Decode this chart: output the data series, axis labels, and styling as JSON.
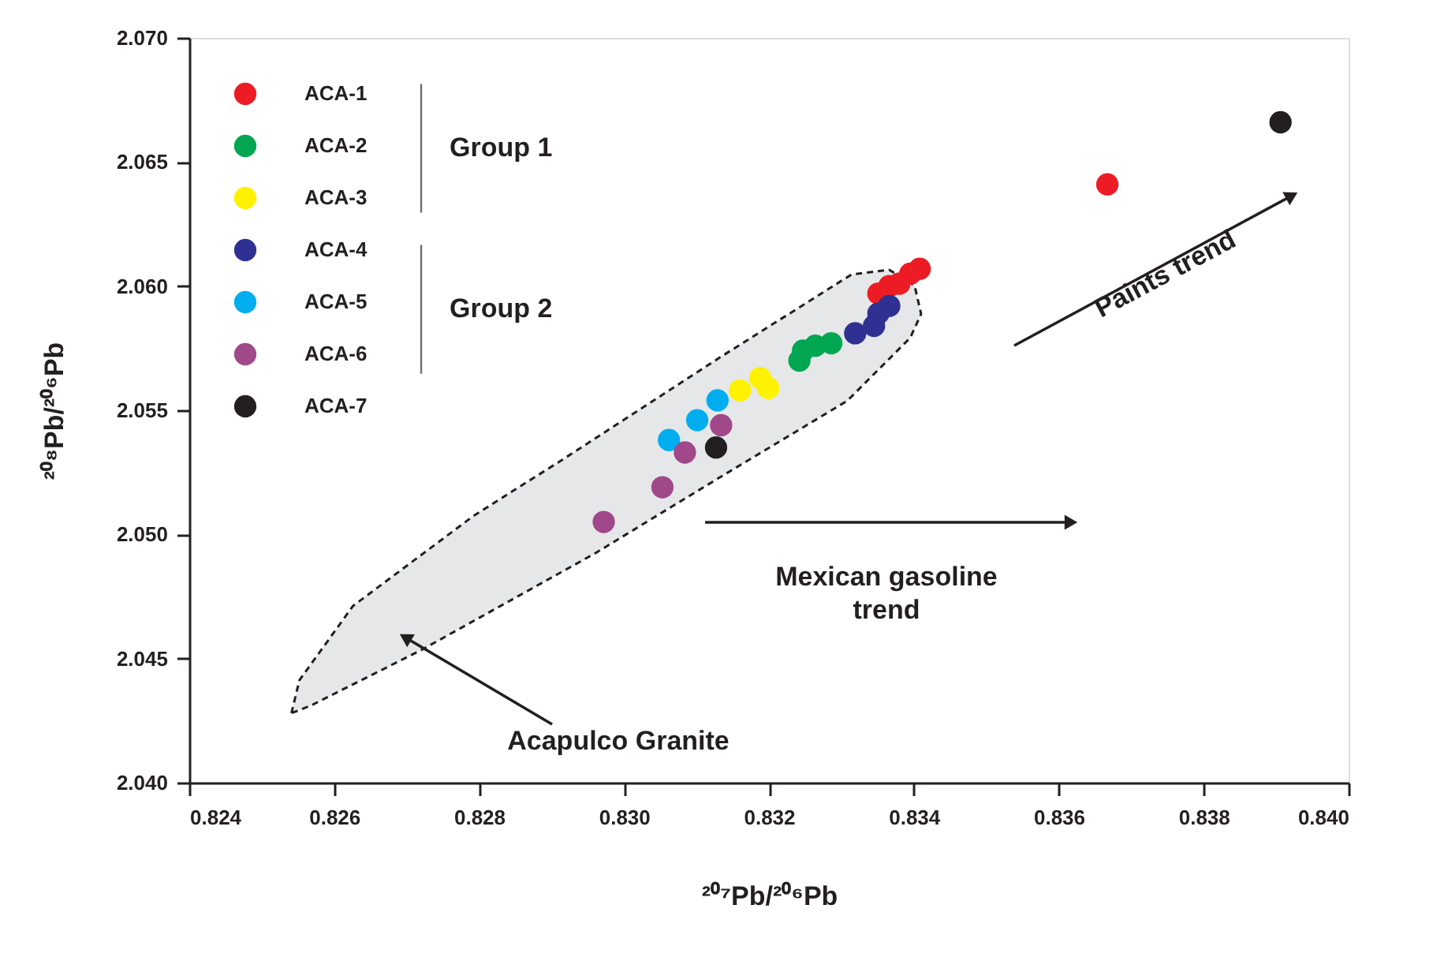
{
  "chart_data": {
    "type": "scatter",
    "marker": "circle",
    "xlabel": "²⁰⁷Pb/²⁰⁶Pb",
    "ylabel": "²⁰⁸Pb/²⁰⁶Pb",
    "xlim": [
      0.824,
      0.84
    ],
    "ylim": [
      2.04,
      2.07
    ],
    "xticks": [
      0.824,
      0.826,
      0.828,
      {
        "value": 0.83,
        "label": "0.830"
      },
      0.832,
      0.834,
      0.836,
      0.838,
      {
        "value": 0.84,
        "label": "0.840"
      }
    ],
    "yticks": [
      {
        "value": 2.04,
        "label": "2.040"
      },
      2.045,
      {
        "value": 2.05,
        "label": "2.050"
      },
      2.055,
      {
        "value": 2.06,
        "label": "2.060"
      },
      2.065,
      {
        "value": 2.07,
        "label": "2.070"
      }
    ],
    "grid": false,
    "legend": "top left",
    "series": [
      {
        "type": "area",
        "marker": "none",
        "color": "#e6e7e8",
        "line_style": "dashed",
        "x": [
          0.82541,
          0.82552,
          0.82626,
          0.82792,
          0.82916,
          0.83134,
          0.83314,
          0.83366,
          0.83401,
          0.8341,
          0.83395,
          0.83308,
          0.83134,
          0.82959,
          0.8272,
          0.82568,
          0.82541
        ],
        "values": [
          2.0428,
          2.04413,
          2.04712,
          2.05074,
          2.05303,
          2.05716,
          2.06047,
          2.06066,
          2.06002,
          2.05888,
          2.05792,
          2.05538,
          2.05233,
          2.04922,
          2.04534,
          2.04311,
          2.0428
        ]
      },
      {
        "name": "ACA-1",
        "type": "scatter",
        "color": "#ed1c24",
        "x": [
          0.83351,
          0.83366,
          0.8338,
          0.83395,
          0.83408,
          0.83667
        ],
        "values": [
          2.0597,
          2.06,
          2.0601,
          2.0605,
          2.0607,
          2.0641
        ]
      },
      {
        "name": "ACA-2",
        "type": "scatter",
        "color": "#00a651",
        "x": [
          0.83242,
          0.83247,
          0.83264,
          0.83286
        ],
        "values": [
          2.057,
          2.0574,
          2.0576,
          2.0577
        ]
      },
      {
        "name": "ACA-3",
        "type": "scatter",
        "color": "#fff200",
        "x": [
          0.8316,
          0.83188,
          0.83199
        ],
        "values": [
          2.0558,
          2.0563,
          2.0559
        ]
      },
      {
        "name": "ACA-4",
        "type": "scatter",
        "color": "#2e3192",
        "x": [
          0.83319,
          0.83345,
          0.83351,
          0.83366
        ],
        "values": [
          2.0581,
          2.0584,
          2.0589,
          2.0592
        ]
      },
      {
        "name": "ACA-5",
        "type": "scatter",
        "color": "#00aeef",
        "x": [
          0.83062,
          0.83101,
          0.83129
        ],
        "values": [
          2.0538,
          2.0546,
          2.0554
        ]
      },
      {
        "name": "ACA-6",
        "type": "scatter",
        "color": "#a1488a",
        "x": [
          0.83134,
          0.83084,
          0.83053,
          0.82972
        ],
        "values": [
          2.0544,
          2.0533,
          2.0519,
          2.0505
        ]
      },
      {
        "name": "ACA-7",
        "type": "scatter",
        "color": "#231f20",
        "x": [
          0.83127,
          0.83906
        ],
        "values": [
          2.0535,
          2.0666
        ]
      }
    ],
    "annotations": [
      "Group 1",
      "Group 2",
      "Mexican gasoline trend",
      "Acapulco Granite",
      "Paints trend"
    ]
  }
}
